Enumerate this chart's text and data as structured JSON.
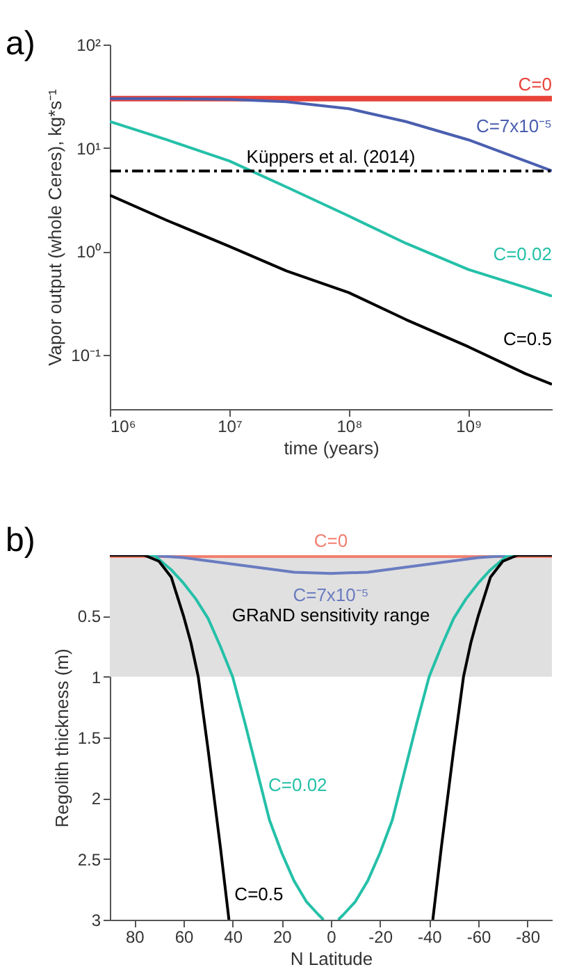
{
  "chart_data": [
    {
      "type": "line",
      "title": "a)",
      "xlabel": "time (years)",
      "ylabel": "Vapor output (whole Ceres), kg*s⁻¹",
      "log": "xy",
      "legend": false,
      "grid": false,
      "xlim": [
        1000000,
        5000000000
      ],
      "ylim": [
        0.03,
        100
      ],
      "xticks": [
        {
          "value": 1000000,
          "label": "10⁶"
        },
        {
          "value": 10000000,
          "label": "10⁷"
        },
        {
          "value": 100000000,
          "label": "10⁸"
        },
        {
          "value": 1000000000,
          "label": "10⁹"
        }
      ],
      "yticks": [
        {
          "value": 0.1,
          "label": "10⁻¹"
        },
        {
          "value": 1,
          "label": "10⁰"
        },
        {
          "value": 10,
          "label": "10¹"
        },
        {
          "value": 100,
          "label": "10²"
        }
      ],
      "ref_lines": [
        {
          "axis": "y",
          "value": 6,
          "label": "Küppers et al. (2014)",
          "color": "#000000",
          "line_style": "dashed"
        }
      ],
      "series": [
        {
          "name": "C=0",
          "color": "#e8433a",
          "x": [
            1000000,
            3000000,
            10000000,
            30000000,
            100000000,
            300000000,
            1000000000,
            3000000000,
            5000000000
          ],
          "values": [
            30,
            30,
            30,
            30,
            30,
            30,
            30,
            30,
            30
          ]
        },
        {
          "name": "C=7x10⁻⁵",
          "color": "#4a5fb0",
          "x": [
            1000000,
            3000000,
            10000000,
            30000000,
            100000000,
            300000000,
            1000000000,
            3000000000,
            5000000000
          ],
          "values": [
            30,
            30,
            29.5,
            28,
            24,
            18,
            12,
            7.5,
            6
          ]
        },
        {
          "name": "C=0.02",
          "color": "#25c0a8",
          "x": [
            1000000,
            3000000,
            10000000,
            30000000,
            100000000,
            300000000,
            1000000000,
            3000000000,
            5000000000
          ],
          "values": [
            18,
            12,
            7.5,
            4.2,
            2.2,
            1.2,
            0.67,
            0.45,
            0.37
          ]
        },
        {
          "name": "C=0.5",
          "color": "#000000",
          "x": [
            1000000,
            3000000,
            10000000,
            30000000,
            100000000,
            300000000,
            1000000000,
            3000000000,
            5000000000
          ],
          "values": [
            3.5,
            2.0,
            1.12,
            0.65,
            0.4,
            0.22,
            0.12,
            0.066,
            0.052
          ]
        }
      ]
    },
    {
      "type": "line",
      "title": "b)",
      "xlabel": "N Latitude",
      "ylabel": "Regolith thickness (m)",
      "legend": false,
      "grid": false,
      "xlim": [
        90,
        -90
      ],
      "ylim": [
        3,
        0
      ],
      "xticks": [
        80,
        60,
        40,
        20,
        0,
        -20,
        -40,
        -60,
        -80
      ],
      "yticks": [
        0.5,
        1,
        1.5,
        2,
        2.5,
        3
      ],
      "bands": [
        {
          "axis": "y",
          "from": 0,
          "to": 1,
          "label": "GRaND sensitivity range",
          "color": "#e0e0e0"
        }
      ],
      "series": [
        {
          "name": "C=0",
          "color": "#f08070",
          "x": [
            90,
            0,
            -90
          ],
          "values": [
            0,
            0,
            0
          ]
        },
        {
          "name": "C=7x10⁻⁵",
          "color": "#6a7cc0",
          "x": [
            90,
            75,
            60,
            45,
            30,
            15,
            0,
            -15,
            -30,
            -45,
            -60,
            -75,
            -90
          ],
          "values": [
            0,
            0,
            0.02,
            0.06,
            0.1,
            0.14,
            0.15,
            0.14,
            0.1,
            0.06,
            0.02,
            0,
            0
          ]
        },
        {
          "name": "C=0.02",
          "color": "#25c0a8",
          "x": [
            90,
            80,
            72,
            65,
            60,
            55,
            50,
            45,
            40,
            35,
            30,
            25,
            20,
            15,
            10,
            5,
            3,
            0,
            -3,
            -5,
            -10,
            -15,
            -20,
            -25,
            -30,
            -35,
            -40,
            -45,
            -50,
            -55,
            -60,
            -65,
            -72,
            -80,
            -90
          ],
          "values": [
            0,
            0,
            0,
            0.12,
            0.23,
            0.36,
            0.52,
            0.75,
            1.0,
            1.38,
            1.78,
            2.18,
            2.45,
            2.68,
            2.85,
            2.96,
            3,
            null,
            3,
            2.96,
            2.85,
            2.68,
            2.45,
            2.18,
            1.78,
            1.38,
            1.0,
            0.75,
            0.52,
            0.36,
            0.23,
            0.12,
            0,
            0,
            0
          ]
        },
        {
          "name": "C=0.5",
          "color": "#000000",
          "x": [
            90,
            80,
            76,
            70,
            65,
            60,
            57,
            54,
            50,
            45,
            41.5,
            0,
            -41.5,
            -45,
            -50,
            -54,
            -57,
            -60,
            -65,
            -70,
            -76,
            -80,
            -90
          ],
          "values": [
            0,
            0,
            0,
            0.05,
            0.18,
            0.5,
            0.72,
            1.0,
            1.6,
            2.4,
            3,
            null,
            3,
            2.4,
            1.6,
            1.0,
            0.72,
            0.5,
            0.18,
            0.05,
            0,
            0,
            0
          ]
        }
      ]
    }
  ]
}
